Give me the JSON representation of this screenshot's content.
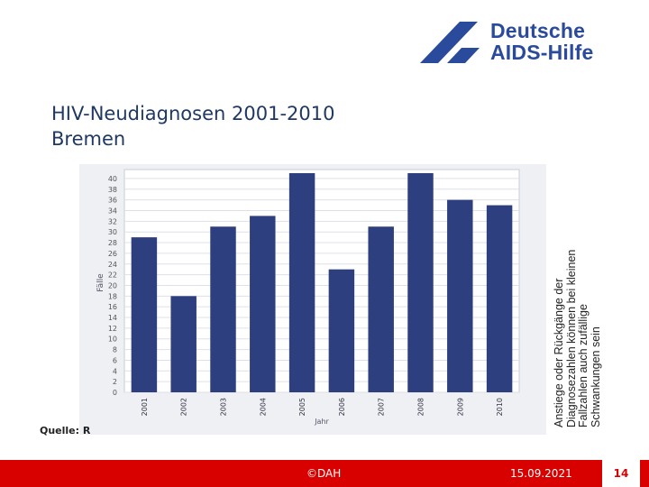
{
  "logo": {
    "line1": "Deutsche",
    "line2": "AIDS-Hilfe",
    "color": "#2a4a9c"
  },
  "slide": {
    "title_line1": "HIV-Neudiagnosen 2001-2010",
    "title_line2": "Bremen"
  },
  "chart_data": {
    "type": "bar",
    "categories": [
      "2001",
      "2002",
      "2003",
      "2004",
      "2005",
      "2006",
      "2007",
      "2008",
      "2009",
      "2010"
    ],
    "values": [
      29,
      18,
      31,
      33,
      41,
      23,
      31,
      41,
      36,
      35
    ],
    "ylabel": "Fälle",
    "xlabel": "Jahr",
    "ylim": [
      0,
      41
    ],
    "yticks": [
      0,
      2,
      4,
      6,
      8,
      10,
      12,
      14,
      16,
      18,
      20,
      22,
      24,
      26,
      28,
      30,
      32,
      34,
      36,
      38,
      40
    ],
    "grid": true,
    "bar_color": "#2e3f80"
  },
  "source": {
    "label": "Quelle: R"
  },
  "side_note": {
    "text": "Anstiege oder Rückgänge der Diagnosezahlen können bei kleinen Fallzahlen auch zufällige Schwankungen sein"
  },
  "footer": {
    "copyright": "©DAH",
    "date": "15.09.2021",
    "page": "14",
    "bg_color": "#d90000"
  }
}
